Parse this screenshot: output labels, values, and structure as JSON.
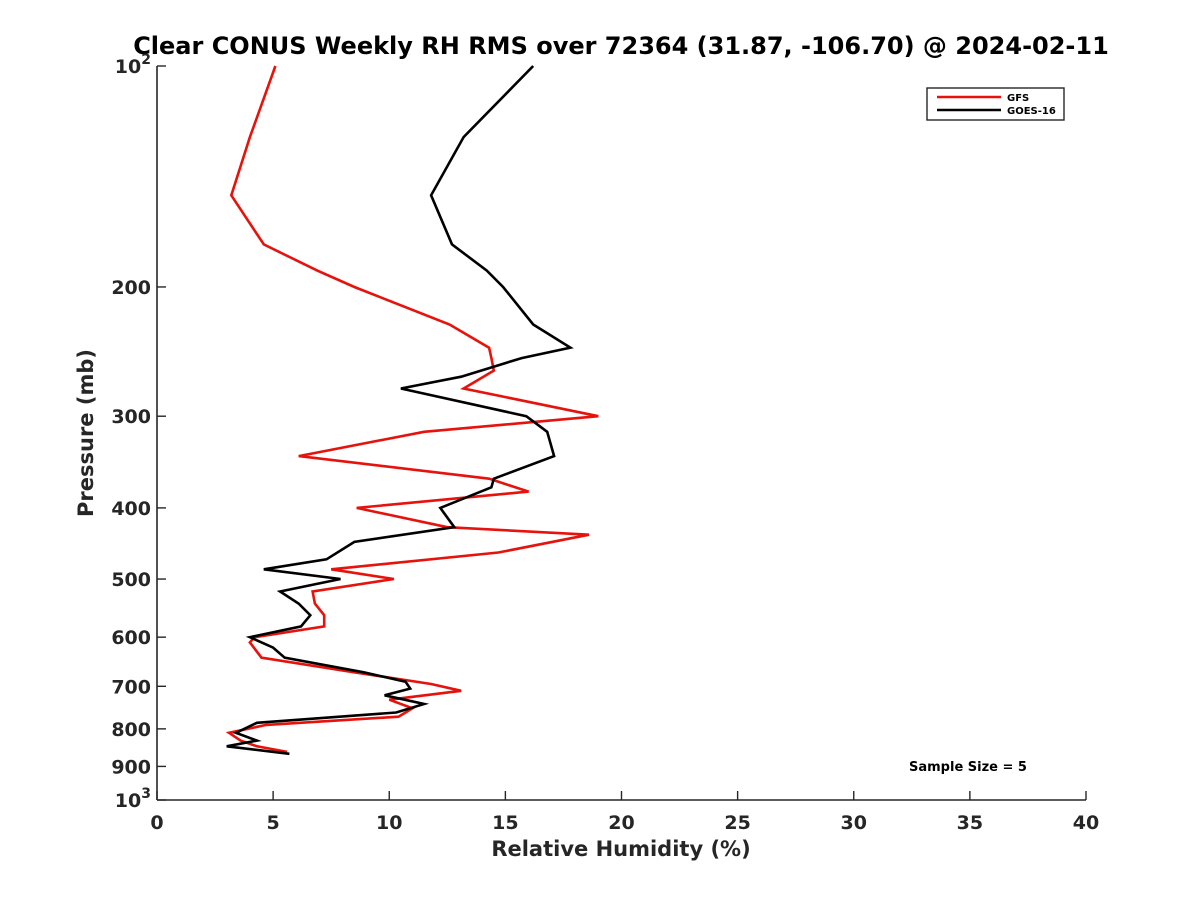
{
  "chart_data": {
    "type": "line",
    "title": "Clear CONUS Weekly RH RMS over 72364 (31.87, -106.70) @ 2024-02-11",
    "xlabel": "Relative Humidity (%)",
    "ylabel": "Pressure (mb)",
    "xlim": [
      0,
      40
    ],
    "ylim": [
      100,
      1000
    ],
    "y_scale": "log",
    "y_reversed": true,
    "x_ticks": [
      0,
      5,
      10,
      15,
      20,
      25,
      30,
      35,
      40
    ],
    "x_tick_labels": [
      "0",
      "5",
      "10",
      "15",
      "20",
      "25",
      "30",
      "35",
      "40"
    ],
    "y_ticks": [
      100,
      200,
      300,
      400,
      500,
      600,
      700,
      800,
      900,
      1000
    ],
    "y_tick_labels": [
      "10^2",
      "200",
      "300",
      "400",
      "500",
      "600",
      "700",
      "800",
      "900",
      "10^3"
    ],
    "legend_position": "top-right",
    "annotation": "Sample Size = 5",
    "series": [
      {
        "name": "GFS",
        "color": "#e8120c",
        "points": [
          [
            5.1,
            100
          ],
          [
            4.0,
            125
          ],
          [
            3.2,
            150
          ],
          [
            4.6,
            175
          ],
          [
            6.9,
            190
          ],
          [
            8.5,
            200
          ],
          [
            12.6,
            225
          ],
          [
            14.3,
            242
          ],
          [
            14.4,
            250
          ],
          [
            14.5,
            260
          ],
          [
            13.2,
            275
          ],
          [
            19.0,
            300
          ],
          [
            11.5,
            315
          ],
          [
            6.1,
            340
          ],
          [
            14.3,
            365
          ],
          [
            16.0,
            380
          ],
          [
            8.6,
            400
          ],
          [
            12.5,
            425
          ],
          [
            18.6,
            435
          ],
          [
            14.7,
            460
          ],
          [
            7.5,
            485
          ],
          [
            10.2,
            500
          ],
          [
            6.7,
            520
          ],
          [
            6.8,
            540
          ],
          [
            7.2,
            560
          ],
          [
            7.2,
            580
          ],
          [
            4.2,
            600
          ],
          [
            4.0,
            610
          ],
          [
            4.5,
            640
          ],
          [
            8.5,
            670
          ],
          [
            11.8,
            695
          ],
          [
            13.1,
            710
          ],
          [
            10.0,
            730
          ],
          [
            11.0,
            750
          ],
          [
            10.4,
            770
          ],
          [
            4.7,
            790
          ],
          [
            3.1,
            810
          ],
          [
            3.6,
            830
          ],
          [
            4.3,
            845
          ],
          [
            5.6,
            860
          ]
        ]
      },
      {
        "name": "GOES-16",
        "color": "#000000",
        "points": [
          [
            16.2,
            100
          ],
          [
            13.2,
            125
          ],
          [
            11.8,
            150
          ],
          [
            12.7,
            175
          ],
          [
            14.2,
            190
          ],
          [
            14.9,
            200
          ],
          [
            16.2,
            225
          ],
          [
            17.8,
            242
          ],
          [
            15.7,
            250
          ],
          [
            13.1,
            265
          ],
          [
            10.5,
            275
          ],
          [
            15.9,
            300
          ],
          [
            16.8,
            315
          ],
          [
            17.1,
            340
          ],
          [
            14.5,
            365
          ],
          [
            14.4,
            375
          ],
          [
            12.2,
            400
          ],
          [
            12.8,
            425
          ],
          [
            8.5,
            445
          ],
          [
            7.3,
            470
          ],
          [
            4.6,
            485
          ],
          [
            7.9,
            500
          ],
          [
            5.3,
            520
          ],
          [
            6.1,
            540
          ],
          [
            6.6,
            560
          ],
          [
            6.2,
            580
          ],
          [
            4.0,
            600
          ],
          [
            5.0,
            620
          ],
          [
            5.5,
            640
          ],
          [
            8.9,
            670
          ],
          [
            10.7,
            690
          ],
          [
            10.9,
            705
          ],
          [
            9.8,
            720
          ],
          [
            11.5,
            740
          ],
          [
            10.3,
            760
          ],
          [
            4.3,
            785
          ],
          [
            3.4,
            810
          ],
          [
            4.3,
            830
          ],
          [
            3.0,
            845
          ],
          [
            5.7,
            865
          ]
        ]
      }
    ]
  }
}
